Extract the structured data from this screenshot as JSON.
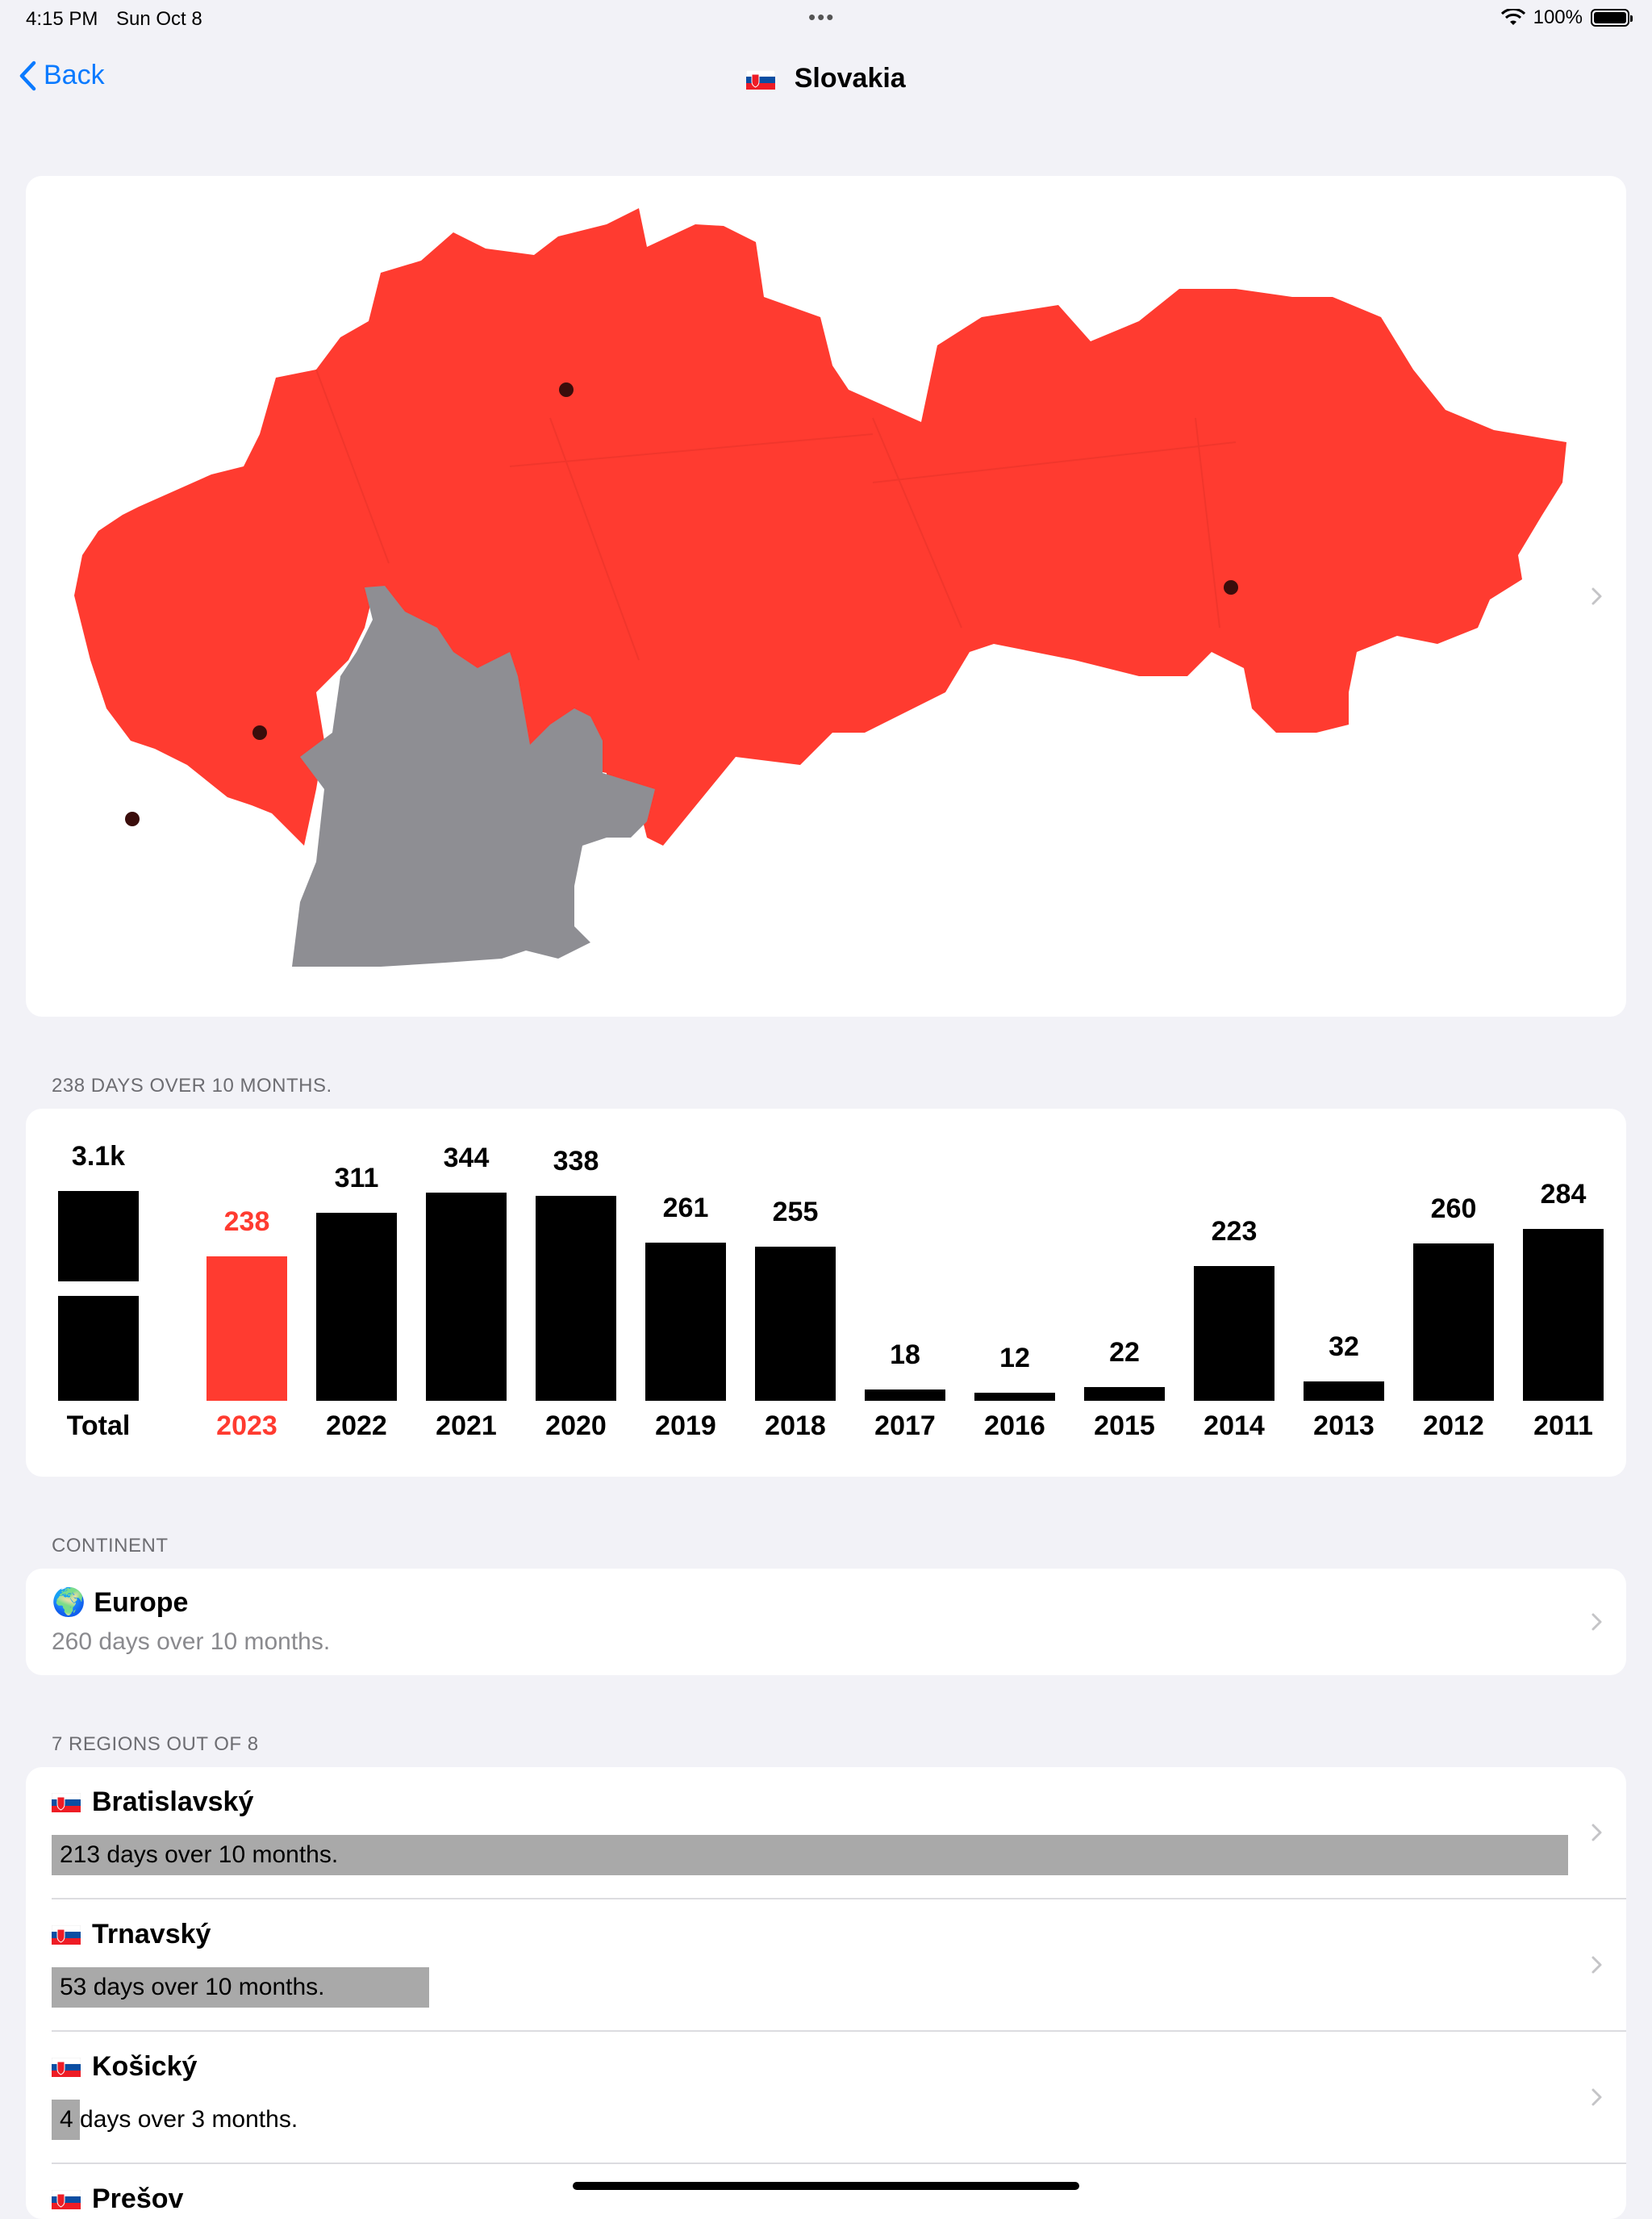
{
  "status": {
    "time": "4:15 PM",
    "date": "Sun Oct 8",
    "battery": "100%",
    "battery_level": 1.0
  },
  "nav": {
    "back_label": "Back",
    "title": "Slovakia"
  },
  "map": {
    "visited_color": "#ff3b30",
    "unvisited_color": "#8e8e93"
  },
  "chart_header": "238 DAYS OVER 10 MONTHS.",
  "chart_data": {
    "type": "bar",
    "categories": [
      "Total",
      "2023",
      "2022",
      "2021",
      "2020",
      "2019",
      "2018",
      "2017",
      "2016",
      "2015",
      "2014",
      "2013",
      "2012",
      "2011"
    ],
    "labels": [
      "3.1k",
      "238",
      "311",
      "344",
      "338",
      "261",
      "255",
      "18",
      "12",
      "22",
      "223",
      "32",
      "260",
      "284"
    ],
    "values": [
      3100,
      238,
      311,
      344,
      338,
      261,
      255,
      18,
      12,
      22,
      223,
      32,
      260,
      284
    ],
    "highlight": "2023",
    "highlight_color": "#ff3b30",
    "bar_color": "#000000"
  },
  "continent": {
    "header": "CONTINENT",
    "name": "Europe",
    "subtitle": "260 days over 10 months."
  },
  "regions": {
    "header": "7 REGIONS OUT OF 8",
    "items": [
      {
        "name": "Bratislavský",
        "days": "213",
        "rest": "days over 10 months.",
        "value": 213
      },
      {
        "name": "Trnavský",
        "days": "53",
        "rest": "days over 10 months.",
        "value": 53
      },
      {
        "name": "Košický",
        "days": "4",
        "rest": "days over 3 months.",
        "value": 4
      },
      {
        "name": "Prešov",
        "days": "",
        "rest": "",
        "value": 0
      }
    ]
  }
}
